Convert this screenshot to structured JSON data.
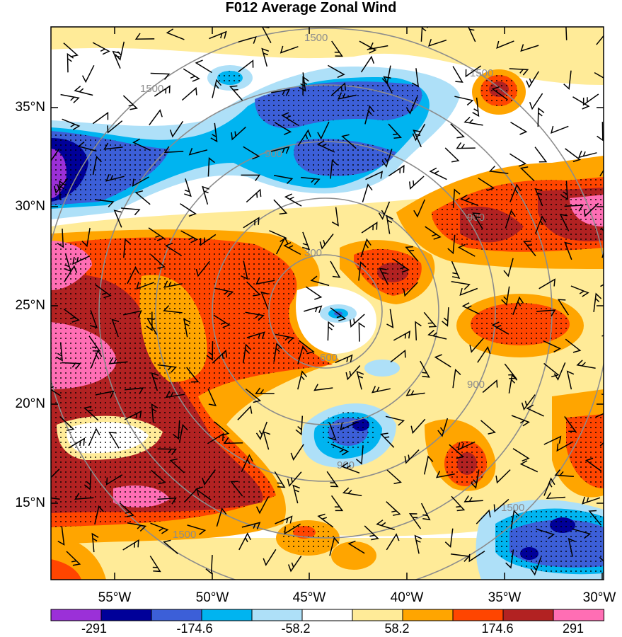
{
  "title": "F012 Average Zonal Wind",
  "map": {
    "lat_labels": [
      "35°N",
      "30°N",
      "25°N",
      "20°N",
      "15°N"
    ],
    "lon_labels": [
      "55°W",
      "50°W",
      "45°W",
      "40°W",
      "35°W",
      "30°W"
    ],
    "range_ring_labels": [
      "300",
      "600",
      "900",
      "900",
      "900",
      "900",
      "1500",
      "1500",
      "1500",
      "1500",
      "1500"
    ],
    "field": "zonal wind (shaded), wind barbs, stippling for significance",
    "center_approx": {
      "lon": -43,
      "lat": 24
    }
  },
  "colorbar": {
    "tick_labels": [
      "-291",
      "-174.6",
      "-58.2",
      "58.2",
      "174.6",
      "291"
    ],
    "colors": [
      "#9b30d8",
      "#000099",
      "#3c5fd8",
      "#00b4f0",
      "#aee0f8",
      "#ffffff",
      "#ffeb98",
      "#ffa500",
      "#ff4500",
      "#b22222",
      "#ff6eb4"
    ]
  }
}
